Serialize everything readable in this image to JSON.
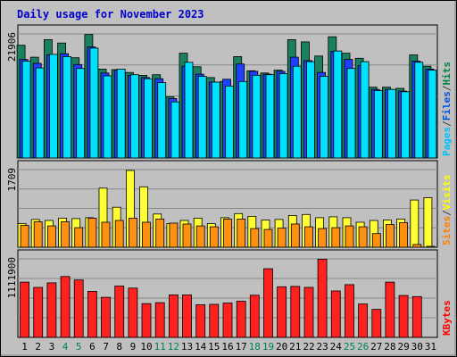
{
  "title": "Daily usage for November 2023",
  "chart_data": [
    {
      "type": "bar",
      "panel": "top",
      "ymax_label": "21906",
      "ymax": 21906,
      "legend": [
        {
          "text": "Pages",
          "color": "#00c0ff"
        },
        {
          "text": "/",
          "color": "#404040"
        },
        {
          "text": "Files",
          "color": "#0050e0"
        },
        {
          "text": "/",
          "color": "#404040"
        },
        {
          "text": "Hits",
          "color": "#008040"
        }
      ],
      "series": [
        {
          "name": "Hits",
          "color": "#1a8060",
          "values": [
            19900,
            17800,
            20900,
            20300,
            17700,
            21800,
            15700,
            15600,
            15100,
            14600,
            14700,
            10800,
            18500,
            16100,
            14200,
            13500,
            17900,
            15400,
            15000,
            15500,
            20900,
            20500,
            18000,
            21400,
            18500,
            17600,
            12500,
            12500,
            12300,
            18200,
            16200
          ]
        },
        {
          "name": "Files",
          "color": "#2040ff",
          "values": [
            17400,
            16700,
            18200,
            18400,
            16500,
            19600,
            15000,
            15500,
            14600,
            14200,
            14000,
            10500,
            16200,
            14800,
            13400,
            13900,
            16600,
            15300,
            14800,
            15300,
            17800,
            17200,
            15100,
            18800,
            17400,
            16300,
            12100,
            12100,
            11800,
            17100,
            15700
          ]
        },
        {
          "name": "Pages",
          "color": "#00e0ff",
          "values": [
            17100,
            15900,
            18300,
            17900,
            15800,
            19400,
            14500,
            15700,
            14700,
            14000,
            13300,
            9900,
            16900,
            14400,
            13400,
            12700,
            13500,
            14600,
            14700,
            14900,
            16200,
            17000,
            14400,
            18900,
            15800,
            17000,
            11900,
            12100,
            11700,
            16900,
            15500
          ]
        }
      ]
    },
    {
      "type": "bar",
      "panel": "middle",
      "ymax_label": "1709",
      "ymax": 1709,
      "legend": [
        {
          "text": "Sites",
          "color": "#ff8000"
        },
        {
          "text": "/",
          "color": "#404040"
        },
        {
          "text": "Visits",
          "color": "#ffff00"
        }
      ],
      "series": [
        {
          "name": "Visits",
          "color": "#ffff33",
          "values": [
            520,
            610,
            590,
            640,
            630,
            650,
            1300,
            880,
            1690,
            1330,
            730,
            520,
            590,
            640,
            520,
            650,
            740,
            680,
            600,
            610,
            700,
            720,
            650,
            670,
            650,
            550,
            590,
            600,
            620,
            1040,
            1090
          ]
        },
        {
          "name": "Sites",
          "color": "#ff9010",
          "values": [
            480,
            560,
            470,
            560,
            430,
            640,
            550,
            590,
            640,
            550,
            620,
            530,
            510,
            470,
            450,
            620,
            620,
            410,
            390,
            420,
            510,
            450,
            410,
            430,
            470,
            450,
            300,
            500,
            540,
            60,
            20
          ]
        }
      ]
    },
    {
      "type": "bar",
      "panel": "bottom",
      "ymax_label": "1111900",
      "ymax": 1111900,
      "legend": [
        {
          "text": "KBytes",
          "color": "#ff0000"
        }
      ],
      "series": [
        {
          "name": "KBytes",
          "color": "#ff2020",
          "values": [
            782000,
            707000,
            772000,
            862000,
            812000,
            652000,
            567000,
            727000,
            697000,
            477000,
            492000,
            602000,
            602000,
            462000,
            467000,
            487000,
            512000,
            597000,
            972000,
            717000,
            722000,
            707000,
            1107000,
            657000,
            747000,
            472000,
            397000,
            782000,
            592000,
            577000,
            null
          ]
        }
      ]
    }
  ],
  "x_labels": [
    {
      "text": "1",
      "weekend": false
    },
    {
      "text": "2",
      "weekend": false
    },
    {
      "text": "3",
      "weekend": false
    },
    {
      "text": "4",
      "weekend": true
    },
    {
      "text": "5",
      "weekend": true
    },
    {
      "text": "6",
      "weekend": false
    },
    {
      "text": "7",
      "weekend": false
    },
    {
      "text": "8",
      "weekend": false
    },
    {
      "text": "9",
      "weekend": false
    },
    {
      "text": "10",
      "weekend": false
    },
    {
      "text": "11",
      "weekend": true
    },
    {
      "text": "12",
      "weekend": true
    },
    {
      "text": "13",
      "weekend": false
    },
    {
      "text": "14",
      "weekend": false
    },
    {
      "text": "15",
      "weekend": false
    },
    {
      "text": "16",
      "weekend": false
    },
    {
      "text": "17",
      "weekend": false
    },
    {
      "text": "18",
      "weekend": true
    },
    {
      "text": "19",
      "weekend": true
    },
    {
      "text": "20",
      "weekend": false
    },
    {
      "text": "21",
      "weekend": false
    },
    {
      "text": "22",
      "weekend": false
    },
    {
      "text": "23",
      "weekend": false
    },
    {
      "text": "24",
      "weekend": false
    },
    {
      "text": "25",
      "weekend": true
    },
    {
      "text": "26",
      "weekend": true
    },
    {
      "text": "27",
      "weekend": false
    },
    {
      "text": "28",
      "weekend": false
    },
    {
      "text": "29",
      "weekend": false
    },
    {
      "text": "30",
      "weekend": false
    },
    {
      "text": "31",
      "weekend": false
    }
  ],
  "colors": {
    "background": "#c0c0c0",
    "title": "#0000cc",
    "weekday_label": "#000000",
    "weekend_label": "#00805a",
    "grid": "#888888",
    "panel_frame": "#000000"
  }
}
